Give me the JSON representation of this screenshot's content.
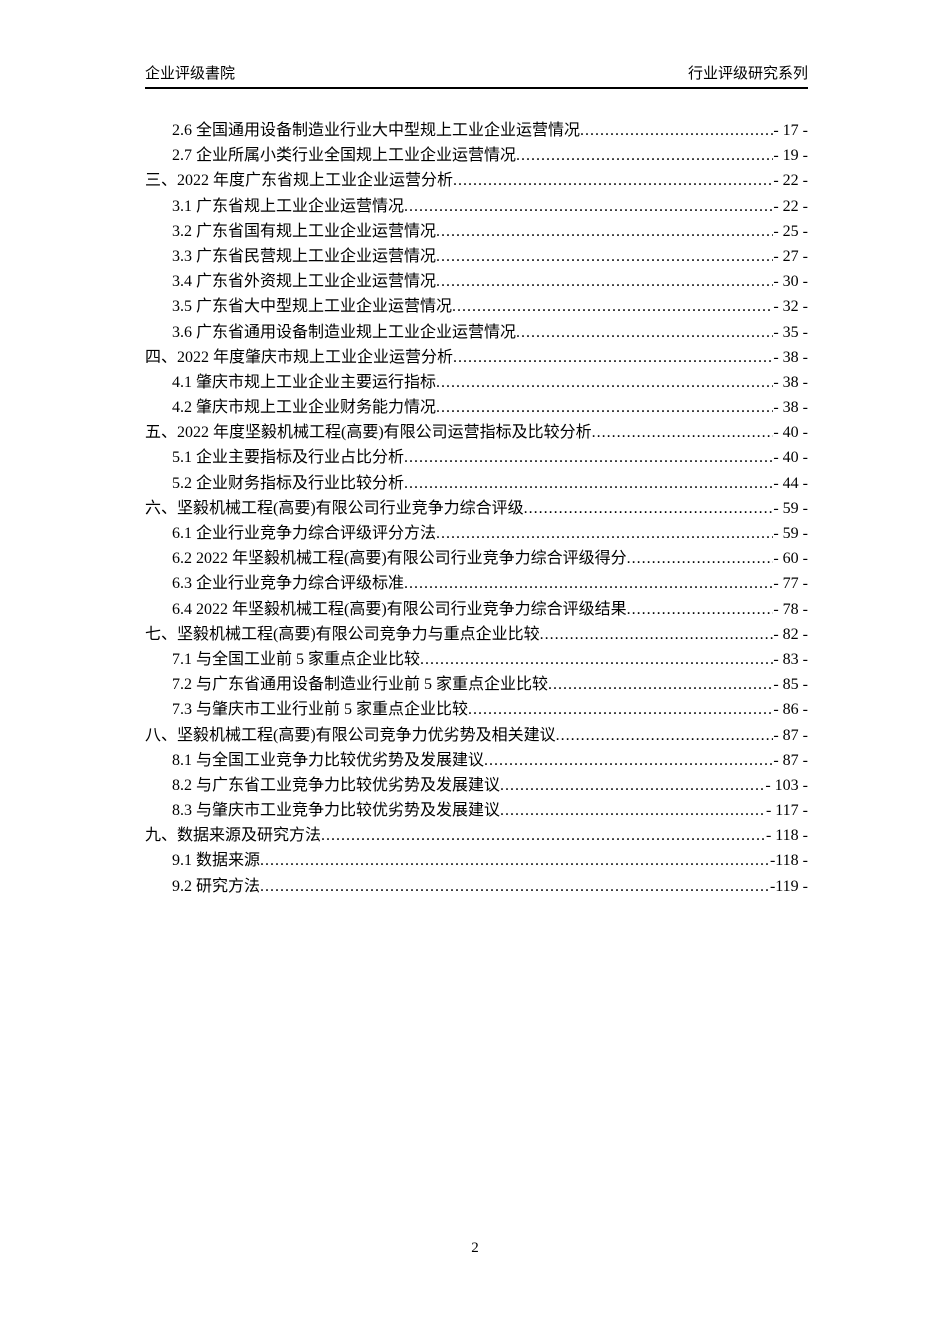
{
  "header": {
    "left": "企业评级書院",
    "right": "行业评级研究系列"
  },
  "footer": {
    "page_number": "2"
  },
  "toc": {
    "entries": [
      {
        "level": 2,
        "text": "2.6 全国通用设备制造业行业大中型规上工业企业运营情况",
        "page": "- 17 -"
      },
      {
        "level": 2,
        "text": "2.7 企业所属小类行业全国规上工业企业运营情况",
        "page": "- 19 -"
      },
      {
        "level": 1,
        "text": "三、2022 年度广东省规上工业企业运营分析",
        "page": "- 22 -"
      },
      {
        "level": 2,
        "text": "3.1 广东省规上工业企业运营情况",
        "page": "- 22 -"
      },
      {
        "level": 2,
        "text": "3.2 广东省国有规上工业企业运营情况",
        "page": "- 25 -"
      },
      {
        "level": 2,
        "text": "3.3 广东省民营规上工业企业运营情况",
        "page": "- 27 -"
      },
      {
        "level": 2,
        "text": "3.4 广东省外资规上工业企业运营情况",
        "page": "- 30 -"
      },
      {
        "level": 2,
        "text": "3.5 广东省大中型规上工业企业运营情况",
        "page": "- 32 -"
      },
      {
        "level": 2,
        "text": "3.6 广东省通用设备制造业规上工业企业运营情况",
        "page": "- 35 -"
      },
      {
        "level": 1,
        "text": "四、2022 年度肇庆市规上工业企业运营分析",
        "page": "- 38 -"
      },
      {
        "level": 2,
        "text": "4.1 肇庆市规上工业企业主要运行指标",
        "page": "- 38 -"
      },
      {
        "level": 2,
        "text": "4.2 肇庆市规上工业企业财务能力情况",
        "page": "- 38 -"
      },
      {
        "level": 1,
        "text": "五、2022 年度坚毅机械工程(高要)有限公司运营指标及比较分析",
        "page": "- 40 -"
      },
      {
        "level": 2,
        "text": "5.1 企业主要指标及行业占比分析",
        "page": "- 40 -"
      },
      {
        "level": 2,
        "text": "5.2 企业财务指标及行业比较分析",
        "page": "- 44 -"
      },
      {
        "level": 1,
        "text": "六、坚毅机械工程(高要)有限公司行业竞争力综合评级",
        "page": "- 59 -"
      },
      {
        "level": 2,
        "text": "6.1 企业行业竞争力综合评级评分方法",
        "page": "- 59 -"
      },
      {
        "level": 2,
        "text": "6.2 2022 年坚毅机械工程(高要)有限公司行业竞争力综合评级得分",
        "page": "- 60 -"
      },
      {
        "level": 2,
        "text": "6.3 企业行业竞争力综合评级标准",
        "page": "- 77 -"
      },
      {
        "level": 2,
        "text": "6.4 2022 年坚毅机械工程(高要)有限公司行业竞争力综合评级结果",
        "page": "- 78 -"
      },
      {
        "level": 1,
        "text": "七、坚毅机械工程(高要)有限公司竞争力与重点企业比较",
        "page": "- 82 -"
      },
      {
        "level": 2,
        "text": "7.1 与全国工业前 5 家重点企业比较",
        "page": "- 83 -"
      },
      {
        "level": 2,
        "text": "7.2 与广东省通用设备制造业行业前 5 家重点企业比较",
        "page": "- 85 -"
      },
      {
        "level": 2,
        "text": "7.3 与肇庆市工业行业前 5 家重点企业比较",
        "page": "- 86 -"
      },
      {
        "level": 1,
        "text": "八、坚毅机械工程(高要)有限公司竞争力优劣势及相关建议",
        "page": "- 87 -"
      },
      {
        "level": 2,
        "text": "8.1 与全国工业竞争力比较优劣势及发展建议",
        "page": "- 87 -"
      },
      {
        "level": 2,
        "text": "8.2 与广东省工业竞争力比较优劣势及发展建议",
        "page": "- 103 -"
      },
      {
        "level": 2,
        "text": "8.3 与肇庆市工业竞争力比较优劣势及发展建议",
        "page": "- 117 -"
      },
      {
        "level": 1,
        "text": "九、数据来源及研究方法",
        "page": "- 118 -"
      },
      {
        "level": 2,
        "text": "9.1 数据来源",
        "page": "-118 -"
      },
      {
        "level": 2,
        "text": "9.2 研究方法",
        "page": "-119 -"
      }
    ]
  }
}
